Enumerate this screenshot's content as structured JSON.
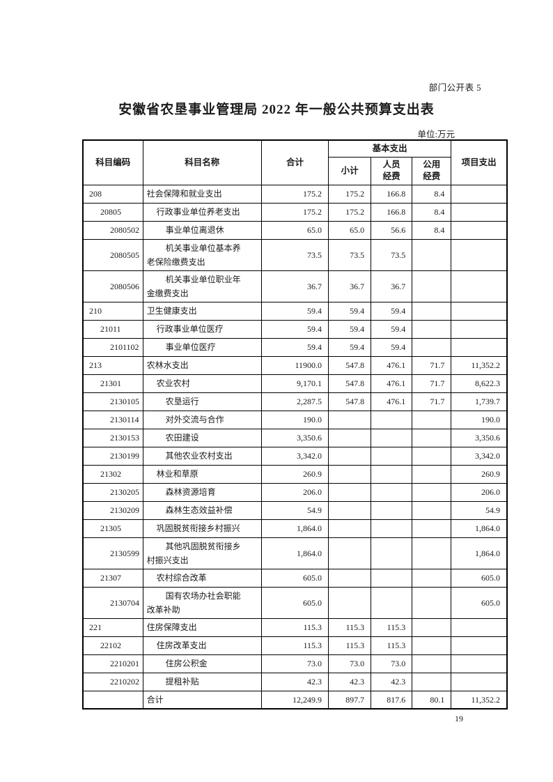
{
  "page": {
    "doc_label": "部门公开表 5",
    "title": "安徽省农垦事业管理局 2022 年一般公共预算支出表",
    "unit_note": "单位:万元",
    "page_number": "19"
  },
  "table": {
    "headers": {
      "code": "科目编码",
      "name": "科目名称",
      "total": "合计",
      "basic_group": "基本支出",
      "subtotal": "小计",
      "personnel": "人员\n经费",
      "public": "公用\n经费",
      "project": "项目支出"
    },
    "rows": [
      {
        "code": "208",
        "name": "社会保障和就业支出",
        "level": 1,
        "total": "175.2",
        "subtotal": "175.2",
        "personnel": "166.8",
        "public": "8.4",
        "project": ""
      },
      {
        "code": "20805",
        "name": "行政事业单位养老支出",
        "level": 2,
        "total": "175.2",
        "subtotal": "175.2",
        "personnel": "166.8",
        "public": "8.4",
        "project": ""
      },
      {
        "code": "2080502",
        "name": "事业单位离退休",
        "level": 3,
        "total": "65.0",
        "subtotal": "65.0",
        "personnel": "56.6",
        "public": "8.4",
        "project": ""
      },
      {
        "code": "2080505",
        "name": "机关事业单位基本养\n老保险缴费支出",
        "level": 3,
        "total": "73.5",
        "subtotal": "73.5",
        "personnel": "73.5",
        "public": "",
        "project": ""
      },
      {
        "code": "2080506",
        "name": "机关事业单位职业年\n金缴费支出",
        "level": 3,
        "total": "36.7",
        "subtotal": "36.7",
        "personnel": "36.7",
        "public": "",
        "project": ""
      },
      {
        "code": "210",
        "name": "卫生健康支出",
        "level": 1,
        "total": "59.4",
        "subtotal": "59.4",
        "personnel": "59.4",
        "public": "",
        "project": ""
      },
      {
        "code": "21011",
        "name": "行政事业单位医疗",
        "level": 2,
        "total": "59.4",
        "subtotal": "59.4",
        "personnel": "59.4",
        "public": "",
        "project": ""
      },
      {
        "code": "2101102",
        "name": "事业单位医疗",
        "level": 3,
        "total": "59.4",
        "subtotal": "59.4",
        "personnel": "59.4",
        "public": "",
        "project": ""
      },
      {
        "code": "213",
        "name": "农林水支出",
        "level": 1,
        "total": "11900.0",
        "subtotal": "547.8",
        "personnel": "476.1",
        "public": "71.7",
        "project": "11,352.2"
      },
      {
        "code": "21301",
        "name": "农业农村",
        "level": 2,
        "total": "9,170.1",
        "subtotal": "547.8",
        "personnel": "476.1",
        "public": "71.7",
        "project": "8,622.3"
      },
      {
        "code": "2130105",
        "name": "农垦运行",
        "level": 3,
        "total": "2,287.5",
        "subtotal": "547.8",
        "personnel": "476.1",
        "public": "71.7",
        "project": "1,739.7"
      },
      {
        "code": "2130114",
        "name": "对外交流与合作",
        "level": 3,
        "total": "190.0",
        "subtotal": "",
        "personnel": "",
        "public": "",
        "project": "190.0"
      },
      {
        "code": "2130153",
        "name": "农田建设",
        "level": 3,
        "total": "3,350.6",
        "subtotal": "",
        "personnel": "",
        "public": "",
        "project": "3,350.6"
      },
      {
        "code": "2130199",
        "name": "其他农业农村支出",
        "level": 3,
        "total": "3,342.0",
        "subtotal": "",
        "personnel": "",
        "public": "",
        "project": "3,342.0"
      },
      {
        "code": "21302",
        "name": "林业和草原",
        "level": 2,
        "total": "260.9",
        "subtotal": "",
        "personnel": "",
        "public": "",
        "project": "260.9"
      },
      {
        "code": "2130205",
        "name": "森林资源培育",
        "level": 3,
        "total": "206.0",
        "subtotal": "",
        "personnel": "",
        "public": "",
        "project": "206.0"
      },
      {
        "code": "2130209",
        "name": "森林生态效益补偿",
        "level": 3,
        "total": "54.9",
        "subtotal": "",
        "personnel": "",
        "public": "",
        "project": "54.9"
      },
      {
        "code": "21305",
        "name": "巩固脱贫衔接乡村振兴",
        "level": 2,
        "total": "1,864.0",
        "subtotal": "",
        "personnel": "",
        "public": "",
        "project": "1,864.0"
      },
      {
        "code": "2130599",
        "name": "其他巩固脱贫衔接乡\n村振兴支出",
        "level": 3,
        "total": "1,864.0",
        "subtotal": "",
        "personnel": "",
        "public": "",
        "project": "1,864.0"
      },
      {
        "code": "21307",
        "name": "农村综合改革",
        "level": 2,
        "total": "605.0",
        "subtotal": "",
        "personnel": "",
        "public": "",
        "project": "605.0"
      },
      {
        "code": "2130704",
        "name": "国有农场办社会职能\n改革补助",
        "level": 3,
        "total": "605.0",
        "subtotal": "",
        "personnel": "",
        "public": "",
        "project": "605.0"
      },
      {
        "code": "221",
        "name": "住房保障支出",
        "level": 1,
        "total": "115.3",
        "subtotal": "115.3",
        "personnel": "115.3",
        "public": "",
        "project": ""
      },
      {
        "code": "22102",
        "name": "住房改革支出",
        "level": 2,
        "total": "115.3",
        "subtotal": "115.3",
        "personnel": "115.3",
        "public": "",
        "project": ""
      },
      {
        "code": "2210201",
        "name": "住房公积金",
        "level": 3,
        "total": "73.0",
        "subtotal": "73.0",
        "personnel": "73.0",
        "public": "",
        "project": ""
      },
      {
        "code": "2210202",
        "name": "提租补贴",
        "level": 3,
        "total": "42.3",
        "subtotal": "42.3",
        "personnel": "42.3",
        "public": "",
        "project": ""
      },
      {
        "code": "",
        "name": "合计",
        "level": 1,
        "total": "12,249.9",
        "subtotal": "897.7",
        "personnel": "817.6",
        "public": "80.1",
        "project": "11,352.2"
      }
    ]
  }
}
